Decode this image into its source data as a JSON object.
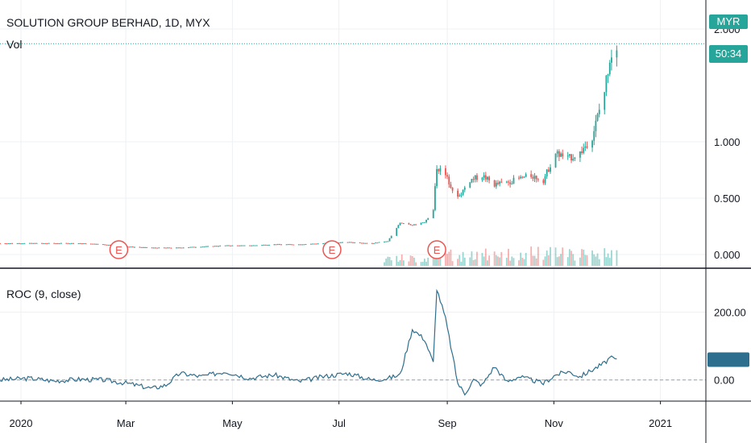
{
  "header": {
    "symbol_title": "SOLUTION GROUP BERHAD, 1D, MYX",
    "volume_label": "Vol"
  },
  "price_scale": {
    "currency": "MYR",
    "countdown": "50:34",
    "tick_labels": [
      "0.000",
      "0.500",
      "1.000",
      "2.000"
    ]
  },
  "roc_pane": {
    "title": "ROC (9, close)",
    "tick_labels": [
      "0.00",
      "200.00"
    ]
  },
  "time_axis": {
    "labels": [
      "2020",
      "Mar",
      "May",
      "Jul",
      "Sep",
      "Nov",
      "2021"
    ]
  },
  "colors": {
    "up": "#26a69a",
    "down": "#ef5350",
    "roc_line": "#2e6f8e",
    "event_marker": "#ef5350"
  },
  "events": [
    "E",
    "E",
    "E"
  ],
  "chart_data": [
    {
      "type": "candlestick",
      "title": "SOLUTION GROUP BERHAD, 1D, MYX",
      "x": [
        "2019-12-20",
        "2020-01-06",
        "2020-01-20",
        "2020-02-03",
        "2020-02-17",
        "2020-03-02",
        "2020-03-16",
        "2020-03-30",
        "2020-04-13",
        "2020-04-27",
        "2020-05-11",
        "2020-05-25",
        "2020-06-08",
        "2020-06-22",
        "2020-07-06",
        "2020-07-20",
        "2020-07-29",
        "2020-08-05",
        "2020-08-12",
        "2020-08-19",
        "2020-08-24",
        "2020-08-26",
        "2020-08-31",
        "2020-09-07",
        "2020-09-14",
        "2020-09-21",
        "2020-09-28",
        "2020-10-05",
        "2020-10-12",
        "2020-10-19",
        "2020-10-26",
        "2020-11-02",
        "2020-11-09",
        "2020-11-16",
        "2020-11-23",
        "2020-11-30",
        "2020-12-03",
        "2020-12-07"
      ],
      "y": [
        0.1,
        0.1,
        0.1,
        0.1,
        0.09,
        0.07,
        0.06,
        0.06,
        0.07,
        0.08,
        0.08,
        0.09,
        0.09,
        0.1,
        0.11,
        0.1,
        0.12,
        0.28,
        0.26,
        0.29,
        0.4,
        0.78,
        0.7,
        0.5,
        0.66,
        0.7,
        0.62,
        0.64,
        0.67,
        0.7,
        0.66,
        0.9,
        0.85,
        0.9,
        1.05,
        1.45,
        1.75,
        1.87
      ],
      "series": [
        {
          "name": "SOLUTION GROUP BERHAD",
          "values": [
            0.1,
            0.1,
            0.1,
            0.1,
            0.09,
            0.07,
            0.06,
            0.06,
            0.07,
            0.08,
            0.08,
            0.09,
            0.09,
            0.1,
            0.11,
            0.1,
            0.12,
            0.28,
            0.26,
            0.29,
            0.4,
            0.78,
            0.7,
            0.5,
            0.66,
            0.7,
            0.62,
            0.64,
            0.67,
            0.7,
            0.66,
            0.9,
            0.85,
            0.9,
            1.05,
            1.45,
            1.75,
            1.87
          ]
        }
      ],
      "ylim": [
        -0.1,
        2.2
      ],
      "yticks": [
        "0.000",
        "0.500",
        "1.000",
        "2.000"
      ],
      "xlabel": "",
      "ylabel": "",
      "grid": true
    },
    {
      "type": "line",
      "title": "ROC (9, close)",
      "x": [
        "2019-12-20",
        "2020-01-06",
        "2020-01-20",
        "2020-02-03",
        "2020-02-17",
        "2020-03-02",
        "2020-03-16",
        "2020-03-24",
        "2020-04-01",
        "2020-04-13",
        "2020-04-27",
        "2020-05-11",
        "2020-05-25",
        "2020-06-08",
        "2020-06-22",
        "2020-07-06",
        "2020-07-20",
        "2020-07-29",
        "2020-08-05",
        "2020-08-12",
        "2020-08-19",
        "2020-08-24",
        "2020-08-26",
        "2020-08-31",
        "2020-09-03",
        "2020-09-07",
        "2020-09-11",
        "2020-09-16",
        "2020-09-21",
        "2020-09-28",
        "2020-10-05",
        "2020-10-12",
        "2020-10-19",
        "2020-10-26",
        "2020-11-02",
        "2020-11-09",
        "2020-11-16",
        "2020-11-23",
        "2020-11-30",
        "2020-12-03",
        "2020-12-07"
      ],
      "y": [
        0,
        5,
        -3,
        2,
        0,
        -10,
        -25,
        -15,
        20,
        10,
        25,
        5,
        15,
        -5,
        10,
        20,
        0,
        5,
        15,
        150,
        120,
        50,
        270,
        180,
        100,
        -10,
        -40,
        0,
        -15,
        40,
        -5,
        10,
        0,
        -10,
        15,
        25,
        10,
        30,
        50,
        65,
        60
      ],
      "series": [
        {
          "name": "ROC",
          "values": [
            0,
            5,
            -3,
            2,
            0,
            -10,
            -25,
            -15,
            20,
            10,
            25,
            5,
            15,
            -5,
            10,
            20,
            0,
            5,
            15,
            150,
            120,
            50,
            270,
            180,
            100,
            -10,
            -40,
            0,
            -15,
            40,
            -5,
            10,
            0,
            -10,
            15,
            25,
            10,
            30,
            50,
            65,
            60
          ]
        }
      ],
      "ylim": [
        -60,
        320
      ],
      "yticks": [
        "0.00",
        "200.00"
      ],
      "xlabel": "",
      "ylabel": "",
      "grid": true
    }
  ]
}
